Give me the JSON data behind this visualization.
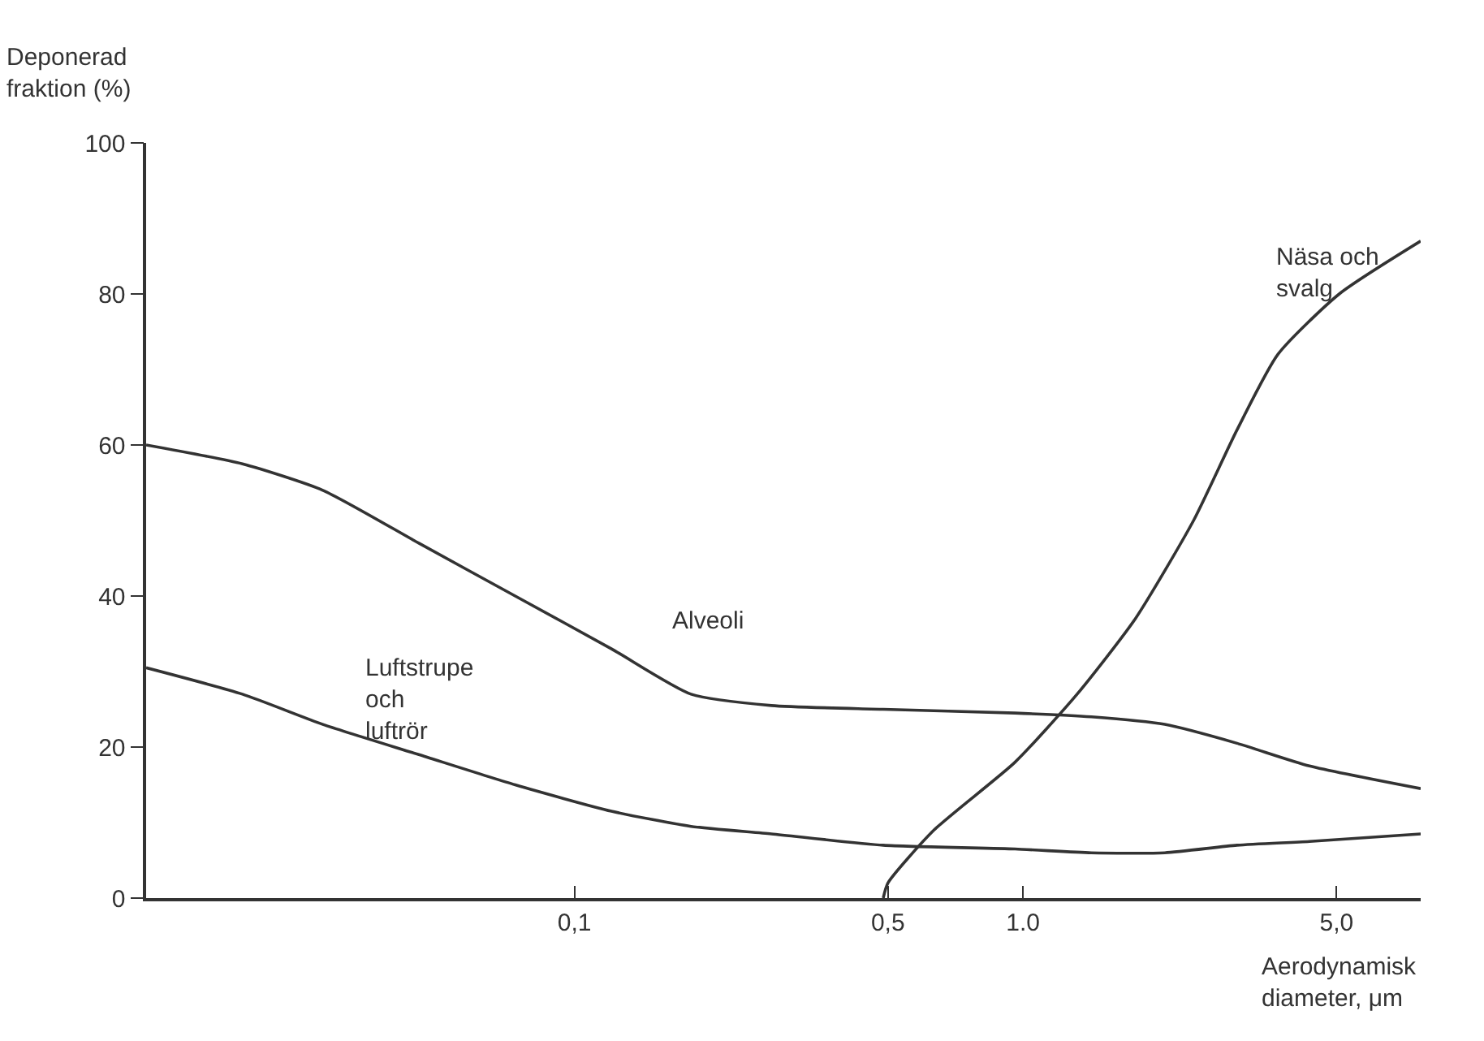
{
  "chart_data": {
    "type": "line",
    "xlabel": "Aerodynamisk\ndiameter, μm",
    "ylabel": "Deponerad\nfraktion (%)",
    "log": "x",
    "xlim": [
      0.0111,
      7.7
    ],
    "xticks": [
      {
        "value": 0.1,
        "label": "0,1"
      },
      {
        "value": 0.5,
        "label": "0,5"
      },
      {
        "value": 1.0,
        "label": "1.0"
      },
      {
        "value": 5.0,
        "label": "5,0"
      }
    ],
    "ylim": [
      0,
      100
    ],
    "yticks": [
      0,
      20,
      40,
      60,
      80,
      100
    ],
    "grid": false,
    "legend": false,
    "marker": "none",
    "line_style": "solid",
    "series": [
      {
        "name": "Alveoli",
        "color": "#333333",
        "x": [
          0.0111,
          0.0182,
          0.0275,
          0.045,
          0.0738,
          0.121,
          0.182,
          0.275,
          0.488,
          0.96,
          1.42,
          2.07,
          3.0,
          4.35,
          7.7
        ],
        "values": [
          60,
          57.5,
          54,
          47,
          40,
          33,
          27,
          25.5,
          25,
          24.5,
          24,
          23,
          20.5,
          17.5,
          14.5
        ]
      },
      {
        "name": "Luftstrupe\noch\nluftrör",
        "color": "#333333",
        "x": [
          0.0111,
          0.0182,
          0.0275,
          0.045,
          0.0738,
          0.121,
          0.182,
          0.275,
          0.488,
          0.96,
          1.42,
          2.07,
          3.0,
          4.35,
          7.7
        ],
        "values": [
          30.5,
          27,
          23,
          19,
          15,
          11.5,
          9.5,
          8.5,
          7,
          6.5,
          6,
          6,
          7,
          7.5,
          8.5
        ]
      },
      {
        "name": "Näsa och\nsvalg",
        "color": "#333333",
        "x": [
          0.488,
          0.5,
          0.633,
          0.96,
          1.32,
          1.78,
          2.4,
          3.0,
          3.7,
          5.07,
          7.7
        ],
        "values": [
          0,
          2,
          9,
          18,
          27,
          37,
          50,
          62,
          72,
          80,
          87
        ]
      }
    ]
  }
}
